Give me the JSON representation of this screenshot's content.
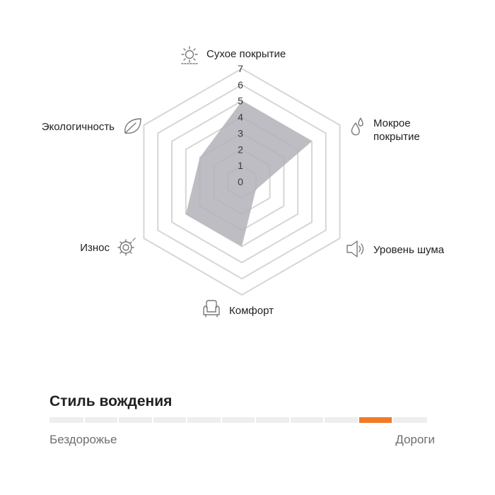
{
  "chart_data": {
    "type": "radar",
    "axes": [
      "Сухое покрытие",
      "Мокрое покрытие",
      "Уровень шума",
      "Комфорт",
      "Износ",
      "Экологичность"
    ],
    "values": [
      5,
      5,
      1,
      4,
      4,
      3
    ],
    "tick_labels": [
      "0",
      "1",
      "2",
      "3",
      "4",
      "5",
      "6",
      "7"
    ],
    "rlim": [
      0,
      7
    ],
    "grid": true,
    "fill_color": "#b3b1b9"
  },
  "axis_icons": [
    "sun-icon",
    "water-drops-icon",
    "speaker-icon",
    "armchair-icon",
    "wear-gear-icon",
    "leaf-icon"
  ],
  "driving_style": {
    "title": "Стиль вождения",
    "left_label": "Бездорожье",
    "right_label": "Дороги",
    "segments": 11,
    "active_segment": 10,
    "accent_color": "#f07b25"
  }
}
